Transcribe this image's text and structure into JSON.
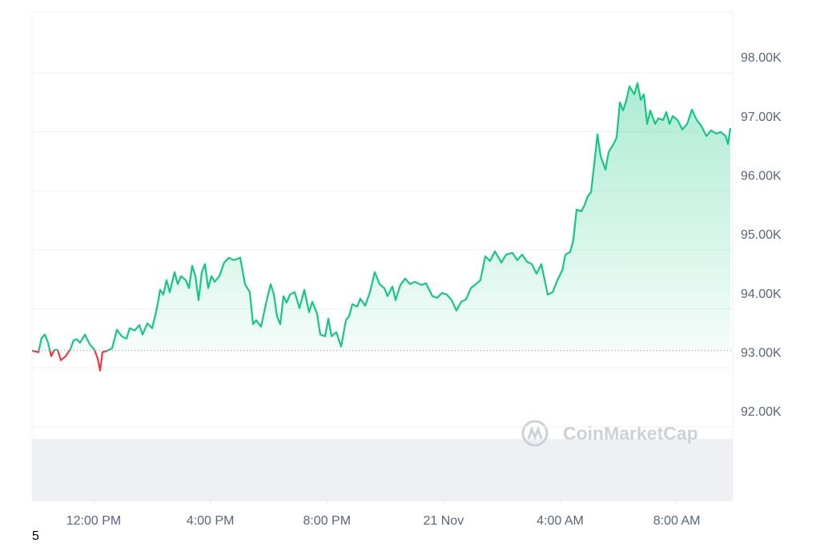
{
  "chart_data": {
    "type": "line",
    "color": "#16c784",
    "down_color": "#ea3943",
    "watermark": "CoinMarketCap",
    "xlim": [
      9.885,
      33.92
    ],
    "xticks": [
      {
        "value": 12,
        "label": "12:00 PM"
      },
      {
        "value": 16,
        "label": "4:00 PM"
      },
      {
        "value": 20,
        "label": "8:00 PM"
      },
      {
        "value": 24,
        "label": "21 Nov"
      },
      {
        "value": 28,
        "label": "4:00 AM"
      },
      {
        "value": 32,
        "label": "8:00 AM"
      }
    ],
    "ylim": [
      90750,
      99030
    ],
    "yticks": [
      {
        "value": 92000,
        "label": "92.00K"
      },
      {
        "value": 93000,
        "label": "93.00K"
      },
      {
        "value": 94000,
        "label": "94.00K"
      },
      {
        "value": 95000,
        "label": "95.00K"
      },
      {
        "value": 96000,
        "label": "96.00K"
      },
      {
        "value": 97000,
        "label": "97.00K"
      },
      {
        "value": 98000,
        "label": "98.00K"
      }
    ],
    "grid": true,
    "x": [
      9.885,
      10.105,
      10.215,
      10.325,
      10.434,
      10.544,
      10.654,
      10.764,
      10.874,
      11.039,
      11.204,
      11.313,
      11.423,
      11.533,
      11.698,
      11.863,
      12.028,
      12.137,
      12.22,
      12.302,
      12.467,
      12.632,
      12.797,
      12.962,
      13.126,
      13.236,
      13.401,
      13.566,
      13.676,
      13.841,
      14.005,
      14.17,
      14.28,
      14.39,
      14.5,
      14.61,
      14.775,
      14.885,
      14.994,
      15.159,
      15.269,
      15.379,
      15.489,
      15.599,
      15.709,
      15.819,
      15.929,
      16.038,
      16.148,
      16.313,
      16.478,
      16.643,
      16.808,
      17.027,
      17.192,
      17.357,
      17.467,
      17.577,
      17.742,
      17.906,
      18.071,
      18.181,
      18.291,
      18.401,
      18.511,
      18.621,
      18.731,
      18.895,
      19.06,
      19.225,
      19.39,
      19.5,
      19.665,
      19.774,
      19.939,
      20.049,
      20.159,
      20.324,
      20.489,
      20.653,
      20.763,
      20.873,
      21.038,
      21.148,
      21.313,
      21.477,
      21.642,
      21.807,
      21.972,
      22.082,
      22.247,
      22.356,
      22.521,
      22.686,
      22.851,
      23.016,
      23.236,
      23.4,
      23.62,
      23.785,
      23.95,
      24.115,
      24.279,
      24.444,
      24.609,
      24.774,
      24.939,
      25.104,
      25.268,
      25.433,
      25.598,
      25.763,
      25.983,
      26.148,
      26.367,
      26.532,
      26.697,
      26.862,
      27.027,
      27.192,
      27.356,
      27.576,
      27.741,
      27.906,
      28.071,
      28.181,
      28.345,
      28.455,
      28.565,
      28.73,
      28.84,
      28.95,
      29.06,
      29.17,
      29.28,
      29.389,
      29.554,
      29.664,
      29.829,
      29.939,
      30.049,
      30.159,
      30.268,
      30.378,
      30.543,
      30.653,
      30.763,
      30.873,
      30.983,
      31.093,
      31.258,
      31.367,
      31.532,
      31.642,
      31.752,
      31.862,
      32.027,
      32.192,
      32.356,
      32.521,
      32.686,
      32.851,
      33.016,
      33.181,
      33.346,
      33.51,
      33.675,
      33.758,
      33.84
    ],
    "values": [
      93291,
      93264,
      93508,
      93563,
      93427,
      93196,
      93305,
      93305,
      93128,
      93196,
      93318,
      93468,
      93481,
      93427,
      93563,
      93400,
      93305,
      93156,
      92952,
      93264,
      93291,
      93332,
      93644,
      93535,
      93495,
      93671,
      93630,
      93725,
      93563,
      93753,
      93671,
      94010,
      94323,
      94241,
      94485,
      94282,
      94621,
      94418,
      94553,
      94485,
      94350,
      94730,
      94553,
      94146,
      94621,
      94757,
      94350,
      94553,
      94458,
      94553,
      94784,
      94865,
      94825,
      94865,
      94418,
      94282,
      93739,
      93807,
      93698,
      94078,
      94418,
      94241,
      93875,
      93739,
      94214,
      94105,
      94241,
      94282,
      94010,
      94323,
      93943,
      94119,
      93915,
      93563,
      93535,
      93834,
      93535,
      93603,
      93359,
      93807,
      93875,
      94078,
      94038,
      94173,
      94051,
      94282,
      94621,
      94418,
      94350,
      94214,
      94377,
      94146,
      94404,
      94513,
      94418,
      94458,
      94404,
      94431,
      94214,
      94187,
      94268,
      94241,
      94146,
      93970,
      94119,
      94160,
      94350,
      94418,
      94485,
      94892,
      94811,
      94974,
      94784,
      94920,
      94947,
      94825,
      94920,
      94797,
      94757,
      94594,
      94757,
      94241,
      94282,
      94485,
      94648,
      94920,
      94960,
      95164,
      95680,
      95652,
      95761,
      95910,
      95978,
      96453,
      96955,
      96589,
      96358,
      96657,
      96792,
      96901,
      97498,
      97362,
      97525,
      97769,
      97634,
      97824,
      97539,
      97634,
      97132,
      97362,
      97132,
      97227,
      97199,
      97335,
      97132,
      97267,
      97199,
      97037,
      97132,
      97376,
      97199,
      97091,
      96928,
      97023,
      96969,
      96996,
      96928,
      96792,
      97064
    ]
  },
  "corner_text": "5"
}
